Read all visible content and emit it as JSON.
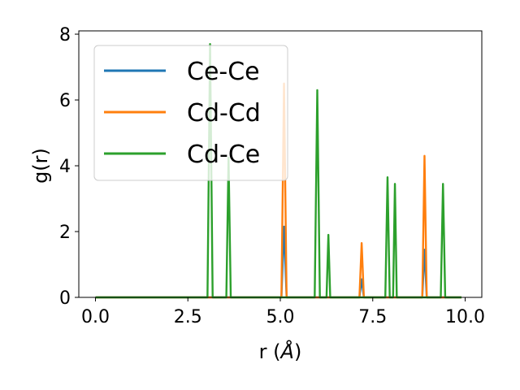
{
  "chart_data": {
    "type": "line",
    "xlabel": "r (",
    "xlabel_unit": "Å",
    "xlabel_close": ")",
    "ylabel": "g(r)",
    "xlim": [
      -0.45,
      10.45
    ],
    "ylim": [
      0,
      8.1
    ],
    "xticks": [
      0.0,
      2.5,
      5.0,
      7.5,
      10.0
    ],
    "xtick_labels": [
      "0.0",
      "2.5",
      "5.0",
      "7.5",
      "10.0"
    ],
    "yticks": [
      0,
      2,
      4,
      6,
      8
    ],
    "ytick_labels": [
      "0",
      "2",
      "4",
      "6",
      "8"
    ],
    "grid": false,
    "legend_position": "top-left",
    "x_range": [
      0.0,
      9.9
    ],
    "series": [
      {
        "name": "Ce-Ce",
        "color": "#1f77b4",
        "peaks": [
          [
            5.1,
            2.15,
            0.07
          ],
          [
            7.2,
            0.55,
            0.06
          ],
          [
            8.9,
            1.45,
            0.06
          ]
        ]
      },
      {
        "name": "Cd-Cd",
        "color": "#ff7f0e",
        "peaks": [
          [
            5.1,
            6.5,
            0.07
          ],
          [
            7.2,
            1.65,
            0.06
          ],
          [
            8.9,
            4.3,
            0.06
          ]
        ]
      },
      {
        "name": "Cd-Ce",
        "color": "#2ca02c",
        "peaks": [
          [
            3.1,
            7.7,
            0.07
          ],
          [
            3.6,
            4.25,
            0.06
          ],
          [
            6.0,
            6.3,
            0.07
          ],
          [
            6.3,
            1.9,
            0.05
          ],
          [
            7.9,
            3.65,
            0.06
          ],
          [
            8.1,
            3.45,
            0.05
          ],
          [
            9.4,
            3.45,
            0.06
          ]
        ]
      }
    ]
  }
}
